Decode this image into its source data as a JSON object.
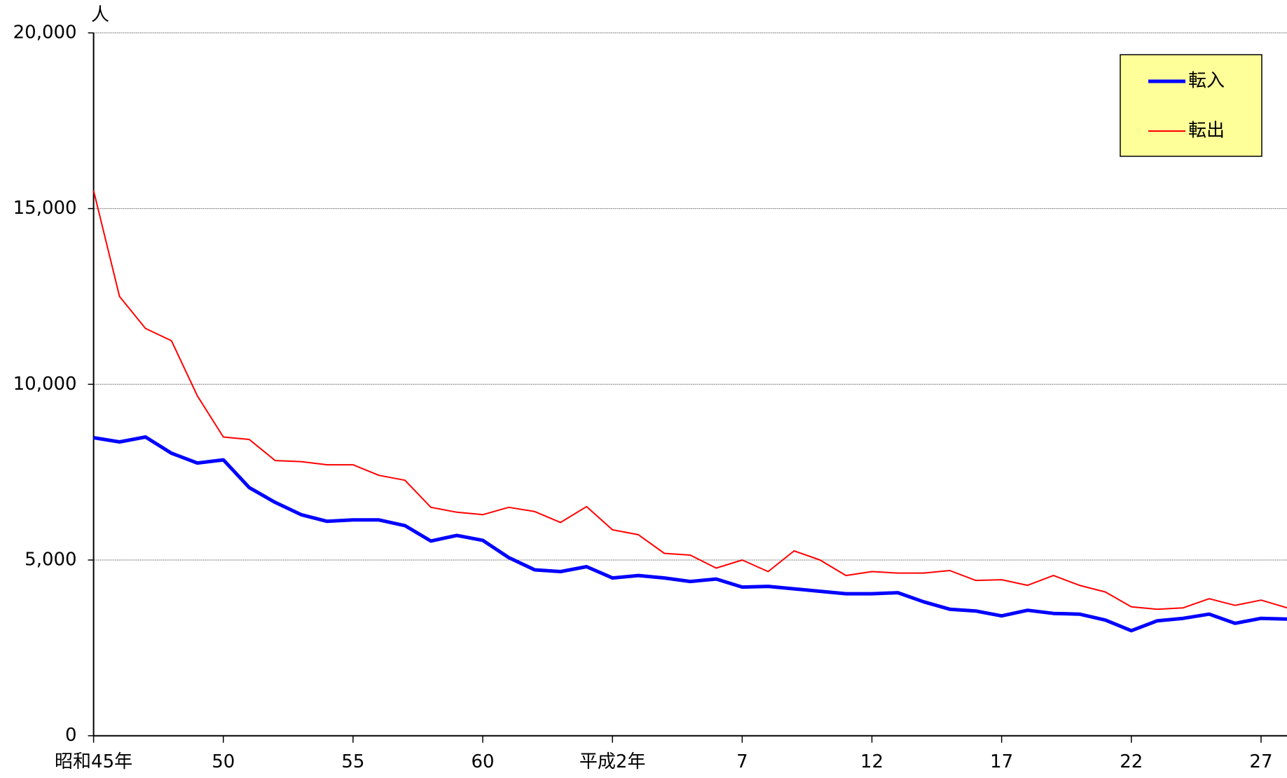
{
  "chart_data": {
    "type": "line",
    "y_unit": "人",
    "categories": [
      "昭和45年",
      null,
      null,
      null,
      null,
      "50",
      null,
      null,
      null,
      null,
      "55",
      null,
      null,
      null,
      null,
      "60",
      null,
      null,
      null,
      null,
      "平成2年",
      null,
      null,
      null,
      null,
      "7",
      null,
      null,
      null,
      null,
      "12",
      null,
      null,
      null,
      null,
      "17",
      null,
      null,
      null,
      null,
      "22",
      null,
      null,
      null,
      null,
      "27",
      null
    ],
    "series": [
      {
        "name": "転入",
        "color": "#0000ff",
        "values": [
          8480,
          8360,
          8500,
          8040,
          7760,
          7850,
          7060,
          6640,
          6290,
          6100,
          6140,
          6140,
          5980,
          5540,
          5700,
          5560,
          5070,
          4720,
          4670,
          4810,
          4490,
          4560,
          4490,
          4390,
          4460,
          4230,
          4250,
          4180,
          4110,
          4040,
          4040,
          4070,
          3810,
          3600,
          3550,
          3410,
          3570,
          3480,
          3460,
          3290,
          2990,
          3270,
          3340,
          3460,
          3200,
          3340,
          3320
        ]
      },
      {
        "name": "転出",
        "color": "#ff0000",
        "values": [
          15510,
          12500,
          11590,
          11240,
          9670,
          8500,
          8430,
          7830,
          7800,
          7710,
          7710,
          7410,
          7270,
          6500,
          6360,
          6290,
          6500,
          6380,
          6070,
          6520,
          5860,
          5720,
          5190,
          5140,
          4770,
          5000,
          4670,
          5260,
          5000,
          4560,
          4670,
          4630,
          4630,
          4700,
          4420,
          4440,
          4280,
          4560,
          4280,
          4090,
          3670,
          3600,
          3640,
          3900,
          3710,
          3860,
          3640
        ]
      }
    ],
    "ylim": [
      0,
      20000
    ],
    "yticks": [
      0,
      {
        "value": 5000,
        "label": "5,000"
      },
      {
        "value": 10000,
        "label": "10,000"
      },
      {
        "value": 15000,
        "label": "15,000"
      },
      {
        "value": 20000,
        "label": "20,000"
      }
    ],
    "grid": true,
    "legend": "upper right",
    "legend_color": "#ffff99"
  }
}
